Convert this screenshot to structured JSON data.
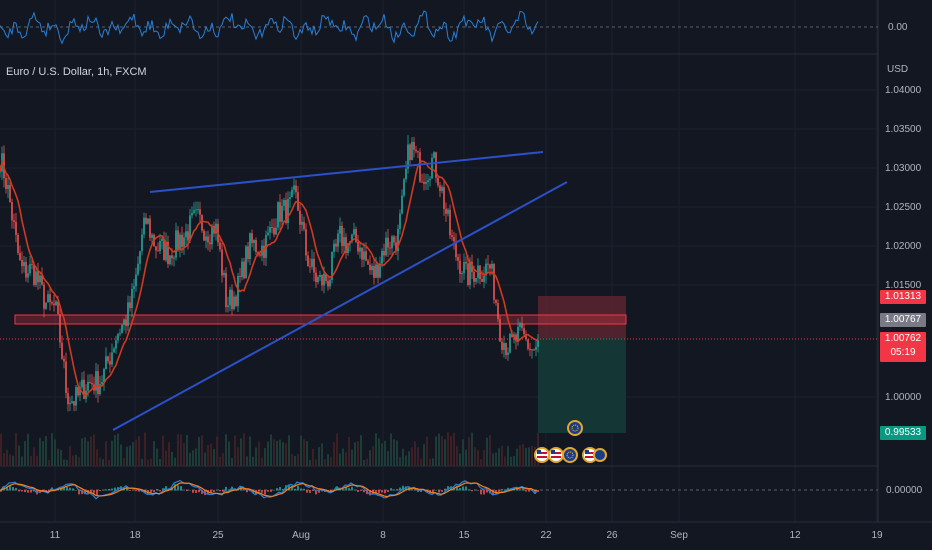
{
  "chart_title": "Euro / U.S. Dollar, 1h, FXCM",
  "price_axis_unit": "USD",
  "colors": {
    "background": "#131722",
    "grid": "#1c2030",
    "trendline": "#2b50c8",
    "moving_average": "#d03a1f",
    "candle_up": "#26a69a",
    "candle_down": "#ef5350",
    "oscillator": "#2a7fd4",
    "sl_zone": "#5c2530",
    "tp_zone": "#153a36",
    "resistance_band": "#f23645"
  },
  "top_indicator": {
    "zero_label": "0.00"
  },
  "bottom_indicator": {
    "zero_label": "0.00000"
  },
  "price_labels": {
    "stop_loss": "1.01313",
    "current_high": "1.00767",
    "current_close": "1.00762",
    "countdown": "05:19",
    "take_profit": "0.99533"
  },
  "event_icons": [
    "eu-flag-icon",
    "us-flag-icon",
    "us-flag-icon",
    "eu-flag-icon",
    "us-flag-icon",
    "eu-flag-icon"
  ],
  "chart_data": {
    "type": "candlestick",
    "y_ticks": [
      "1.04000",
      "1.03500",
      "1.03000",
      "1.02500",
      "1.02000",
      "1.01500",
      "1.00000"
    ],
    "x_ticks": [
      "11",
      "18",
      "25",
      "Aug",
      "8",
      "15",
      "22",
      "26",
      "Sep",
      "12",
      "19"
    ],
    "ylim": [
      0.992,
      1.043
    ],
    "grid": true,
    "trendlines": [
      {
        "name": "upper-channel",
        "points": [
          [
            "Jul 18",
            1.0268
          ],
          [
            "Aug 20",
            1.032
          ]
        ]
      },
      {
        "name": "rising-support",
        "points": [
          [
            "Jul 14",
            0.9965
          ],
          [
            "Aug 23",
            1.028
          ]
        ]
      }
    ],
    "horizontal_zone": {
      "from": 1.0078,
      "to": 1.0087
    },
    "position": {
      "entry": 1.00762,
      "stop_loss": 1.01313,
      "take_profit": 0.99533
    },
    "path_anchors": [
      [
        "Jul 5",
        1.04
      ],
      [
        "Jul 8",
        1.018
      ],
      [
        "Jul 11",
        1.012
      ],
      [
        "Jul 12",
        1.001
      ],
      [
        "Jul 14",
        1.0015
      ],
      [
        "Jul 16",
        1.006
      ],
      [
        "Jul 18",
        1.015
      ],
      [
        "Jul 19",
        1.023
      ],
      [
        "Jul 21",
        1.018
      ],
      [
        "Jul 22",
        1.022
      ],
      [
        "Jul 25",
        1.023
      ],
      [
        "Jul 26",
        1.012
      ],
      [
        "Jul 28",
        1.019
      ],
      [
        "Jul 30",
        1.022
      ],
      [
        "Aug 1",
        1.027
      ],
      [
        "Aug 2",
        1.018
      ],
      [
        "Aug 4",
        1.015
      ],
      [
        "Aug 5",
        1.022
      ],
      [
        "Aug 8",
        1.017
      ],
      [
        "Aug 10",
        1.022
      ],
      [
        "Aug 11",
        1.032
      ],
      [
        "Aug 12",
        1.03
      ],
      [
        "Aug 13",
        1.031
      ],
      [
        "Aug 15",
        1.02
      ],
      [
        "Aug 16",
        1.015
      ],
      [
        "Aug 17",
        1.018
      ],
      [
        "Aug 18",
        1.017
      ],
      [
        "Aug 19",
        1.009
      ],
      [
        "Aug 20",
        1.0076
      ]
    ]
  }
}
